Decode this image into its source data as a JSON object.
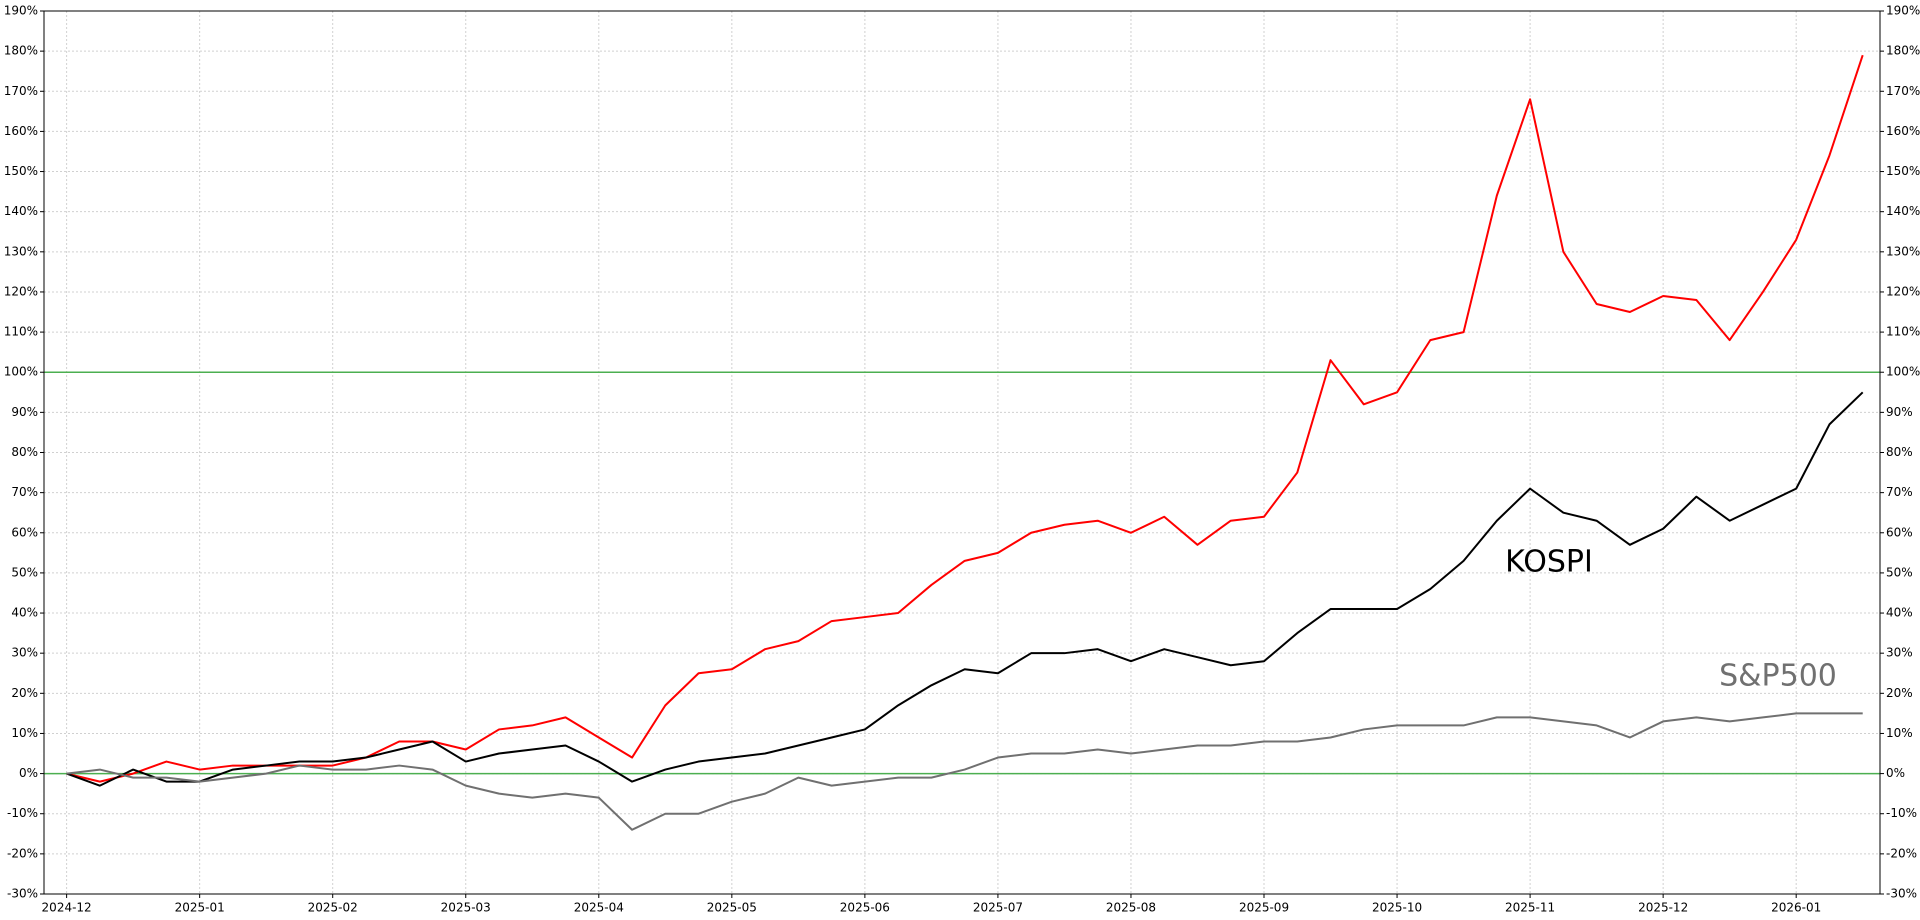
{
  "chart_data": {
    "type": "line",
    "x": [
      0,
      0.25,
      0.5,
      0.75,
      1,
      1.25,
      1.5,
      1.75,
      2,
      2.25,
      2.5,
      2.75,
      3,
      3.25,
      3.5,
      3.75,
      4,
      4.25,
      4.5,
      4.75,
      5,
      5.25,
      5.5,
      5.75,
      6,
      6.25,
      6.5,
      6.75,
      7,
      7.25,
      7.5,
      7.75,
      8,
      8.25,
      8.5,
      8.75,
      9,
      9.25,
      9.5,
      9.75,
      10,
      10.25,
      10.5,
      10.75,
      11,
      11.25,
      11.5,
      11.75,
      12,
      12.25,
      12.5,
      12.75,
      13,
      13.25,
      13.5
    ],
    "series": [
      {
        "color": "#ff0000",
        "values": [
          0,
          -2,
          0,
          3,
          1,
          2,
          2,
          2,
          2,
          4,
          8,
          8,
          6,
          11,
          12,
          14,
          9,
          4,
          17,
          25,
          26,
          31,
          33,
          38,
          39,
          40,
          47,
          53,
          55,
          60,
          62,
          63,
          60,
          64,
          57,
          63,
          64,
          75,
          103,
          92,
          95,
          108,
          110,
          144,
          168,
          130,
          117,
          115,
          119,
          118,
          108,
          120,
          133,
          154,
          179
        ]
      },
      {
        "name": "KOSPI",
        "color": "#000000",
        "values": [
          0,
          -3,
          1,
          -2,
          -2,
          1,
          2,
          3,
          3,
          4,
          6,
          8,
          3,
          5,
          6,
          7,
          3,
          -2,
          1,
          3,
          4,
          5,
          7,
          9,
          11,
          17,
          22,
          26,
          25,
          30,
          30,
          31,
          28,
          31,
          29,
          27,
          28,
          35,
          41,
          41,
          41,
          46,
          53,
          63,
          71,
          65,
          63,
          57,
          61,
          69,
          63,
          67,
          71,
          87,
          95
        ]
      },
      {
        "name": "S&P500",
        "color": "#707070",
        "values": [
          0,
          1,
          -1,
          -1,
          -2,
          -1,
          0,
          2,
          1,
          1,
          2,
          1,
          -3,
          -5,
          -6,
          -5,
          -6,
          -14,
          -10,
          -10,
          -7,
          -5,
          -1,
          -3,
          -2,
          -1,
          -1,
          1,
          4,
          5,
          5,
          6,
          5,
          6,
          7,
          7,
          8,
          8,
          9,
          11,
          12,
          12,
          12,
          14,
          14,
          13,
          12,
          9,
          13,
          14,
          13,
          14,
          15,
          15,
          15
        ]
      }
    ],
    "xlim": [
      -0.17,
      13.63
    ],
    "xticks": [
      {
        "value": 0,
        "label": "2024-12"
      },
      {
        "value": 1,
        "label": "2025-01"
      },
      {
        "value": 2,
        "label": "2025-02"
      },
      {
        "value": 3,
        "label": "2025-03"
      },
      {
        "value": 4,
        "label": "2025-04"
      },
      {
        "value": 5,
        "label": "2025-05"
      },
      {
        "value": 6,
        "label": "2025-06"
      },
      {
        "value": 7,
        "label": "2025-07"
      },
      {
        "value": 8,
        "label": "2025-08"
      },
      {
        "value": 9,
        "label": "2025-09"
      },
      {
        "value": 10,
        "label": "2025-10"
      },
      {
        "value": 11,
        "label": "2025-11"
      },
      {
        "value": 12,
        "label": "2025-12"
      },
      {
        "value": 13,
        "label": "2026-01"
      }
    ],
    "ylim": [
      -30,
      190
    ],
    "yticks": [
      {
        "value": -30,
        "label": "-30%"
      },
      {
        "value": -20,
        "label": "-20%"
      },
      {
        "value": -10,
        "label": "-10%"
      },
      {
        "value": 0,
        "label": "0%"
      },
      {
        "value": 10,
        "label": "10%"
      },
      {
        "value": 20,
        "label": "20%"
      },
      {
        "value": 30,
        "label": "30%"
      },
      {
        "value": 40,
        "label": "40%"
      },
      {
        "value": 50,
        "label": "50%"
      },
      {
        "value": 60,
        "label": "60%"
      },
      {
        "value": 70,
        "label": "70%"
      },
      {
        "value": 80,
        "label": "80%"
      },
      {
        "value": 90,
        "label": "90%"
      },
      {
        "value": 100,
        "label": "100%"
      },
      {
        "value": 110,
        "label": "110%"
      },
      {
        "value": 120,
        "label": "120%"
      },
      {
        "value": 130,
        "label": "130%"
      },
      {
        "value": 140,
        "label": "140%"
      },
      {
        "value": 150,
        "label": "150%"
      },
      {
        "value": 160,
        "label": "160%"
      },
      {
        "value": 170,
        "label": "170%"
      },
      {
        "value": 180,
        "label": "180%"
      },
      {
        "value": 190,
        "label": "190%"
      }
    ],
    "grid": true,
    "reference_lines": [
      0,
      100
    ],
    "reference_color": "#4caf50"
  }
}
